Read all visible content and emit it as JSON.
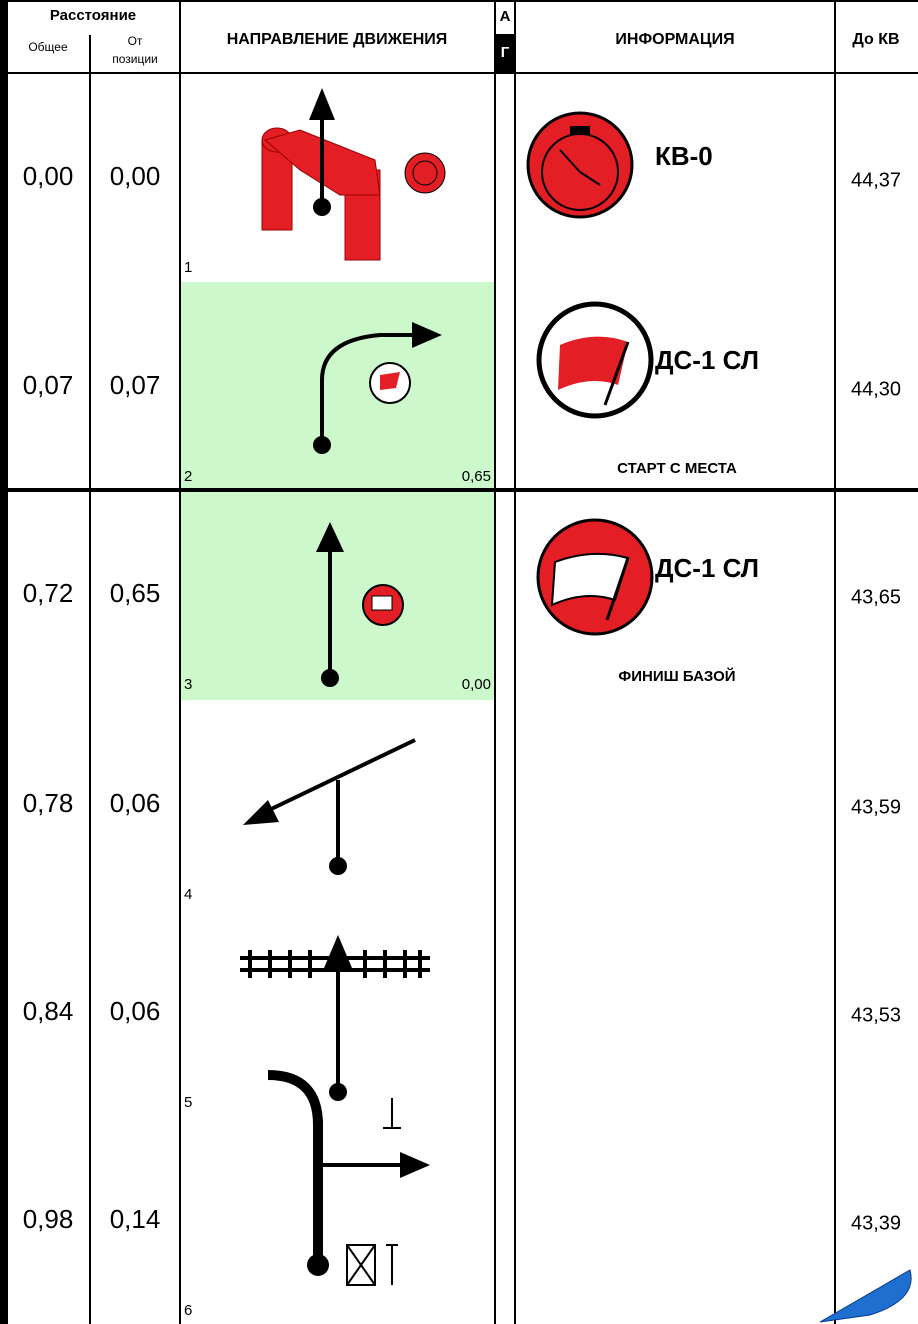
{
  "header": {
    "distance": "Расстояние",
    "total": "Общее",
    "from_position": [
      "От",
      "позиции"
    ],
    "direction": "НАПРАВЛЕНИЕ ДВИЖЕНИЯ",
    "a": "А",
    "g": "Г",
    "info": "ИНФОРМАЦИЯ",
    "to_kv": "До КВ"
  },
  "rows": [
    {
      "number": "1",
      "total": "0,00",
      "from_position": "0,00",
      "info_title": "КВ-0",
      "to_kv": "44,37"
    },
    {
      "number": "2",
      "total": "0,07",
      "from_position": "0,07",
      "corner": "0,65",
      "info_title": "ДС-1 СЛ",
      "info_subtitle": "СТАРТ С МЕСТА",
      "to_kv": "44,30"
    },
    {
      "number": "3",
      "total": "0,72",
      "from_position": "0,65",
      "corner": "0,00",
      "info_title": "ДС-1 СЛ",
      "info_subtitle": "ФИНИШ БАЗОЙ",
      "to_kv": "43,65"
    },
    {
      "number": "4",
      "total": "0,78",
      "from_position": "0,06",
      "to_kv": "43,59"
    },
    {
      "number": "5",
      "total": "0,84",
      "from_position": "0,06",
      "to_kv": "43,53"
    },
    {
      "number": "6",
      "total": "0,98",
      "from_position": "0,14",
      "to_kv": "43,39"
    }
  ]
}
